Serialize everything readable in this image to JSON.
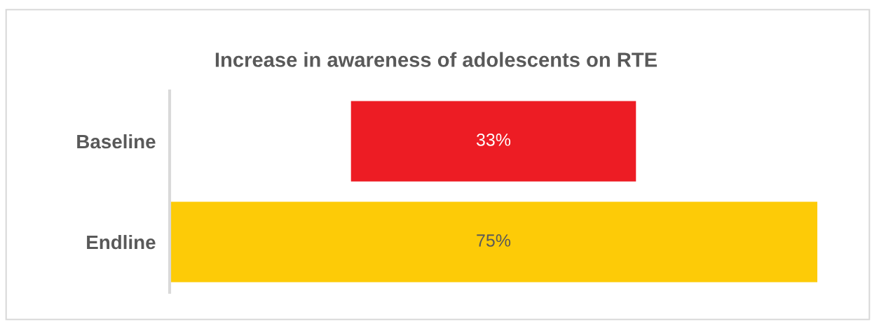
{
  "chart_data": {
    "type": "other",
    "title": "Increase in awareness of adolescents on RTE",
    "categories": [
      "Baseline",
      "Endline"
    ],
    "values": [
      33,
      75
    ],
    "colors": [
      "#ed1c24",
      "#fdcb07"
    ],
    "value_labels": [
      "33%",
      "75%"
    ]
  }
}
